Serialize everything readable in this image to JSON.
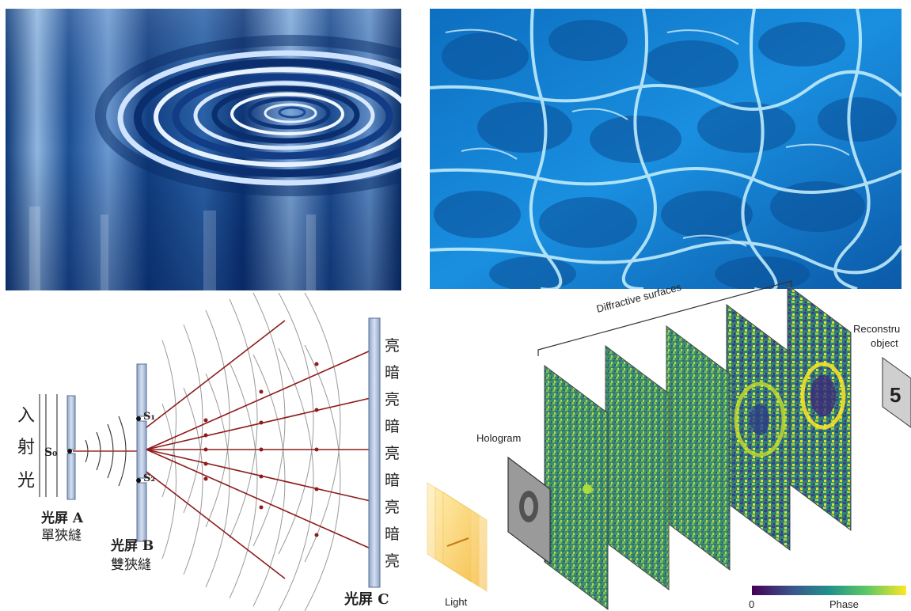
{
  "slit_figure": {
    "incident_light_chars": [
      "入",
      "射",
      "光"
    ],
    "source_label": "S₀",
    "slit1_label": "S₁",
    "slit2_label": "S₂",
    "screen_a_title": "光屏 A",
    "screen_a_sub": "單狹縫",
    "screen_b_title": "光屏 B",
    "screen_b_sub": "雙狹縫",
    "screen_c_title": "光屏 C",
    "fringes": [
      "亮",
      "暗",
      "亮",
      "暗",
      "亮",
      "暗",
      "亮",
      "暗",
      "亮"
    ]
  },
  "holography_figure": {
    "surfaces_label": "Diffractive surfaces",
    "hologram_label": "Hologram",
    "light_label": "Light",
    "reconstructed_label_line1": "Reconstru",
    "reconstructed_label_line2": "object",
    "reconstructed_digit": "5",
    "colorbar_min": "0",
    "colorbar_label": "Phase"
  }
}
